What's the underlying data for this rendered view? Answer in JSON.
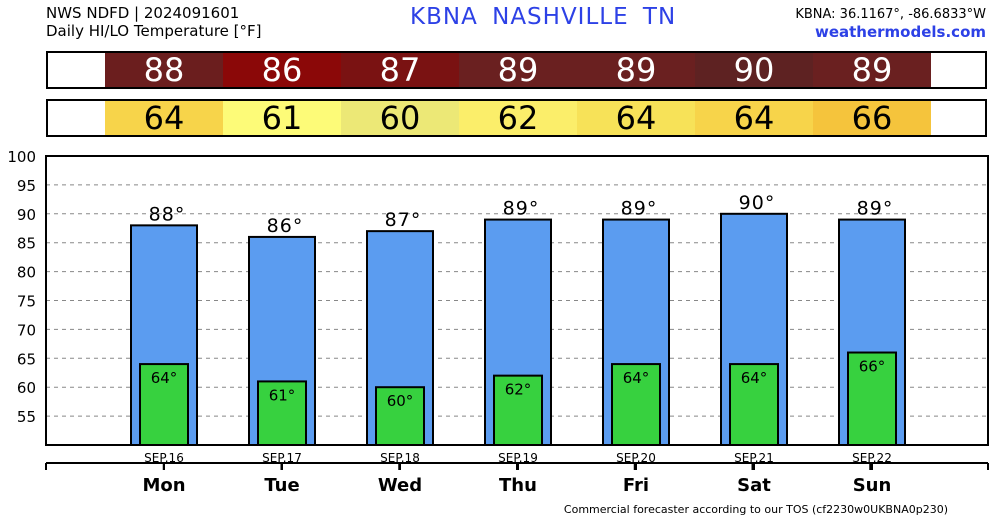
{
  "header": {
    "source_line": "NWS NDFD | 2024091601",
    "product_line": "Daily HI/LO Temperature [°F]",
    "station_line": "KBNA  NASHVILLE     TN",
    "coords": "KBNA: 36.1167°, -86.6833°W",
    "site": "weathermodels.com"
  },
  "hi_strip": [
    {
      "value": "88",
      "color": "#6b1e1e"
    },
    {
      "value": "86",
      "color": "#8b0808"
    },
    {
      "value": "87",
      "color": "#7a1212"
    },
    {
      "value": "89",
      "color": "#6a2020"
    },
    {
      "value": "89",
      "color": "#6a2020"
    },
    {
      "value": "90",
      "color": "#5e2222"
    },
    {
      "value": "89",
      "color": "#6a2020"
    }
  ],
  "lo_strip": [
    {
      "value": "64",
      "color": "#f7d44a"
    },
    {
      "value": "61",
      "color": "#fdfb78"
    },
    {
      "value": "60",
      "color": "#ece876"
    },
    {
      "value": "62",
      "color": "#fbee6a"
    },
    {
      "value": "64",
      "color": "#f7e258"
    },
    {
      "value": "64",
      "color": "#f7d44a"
    },
    {
      "value": "66",
      "color": "#f5c43c"
    }
  ],
  "chart_data": {
    "type": "bar",
    "categories": [
      "Mon",
      "Tue",
      "Wed",
      "Thu",
      "Fri",
      "Sat",
      "Sun"
    ],
    "dates": [
      "SEP.16",
      "SEP.17",
      "SEP.18",
      "SEP.19",
      "SEP.20",
      "SEP.21",
      "SEP.22"
    ],
    "series": [
      {
        "values": [
          88,
          86,
          87,
          89,
          89,
          90,
          89
        ],
        "labels": [
          "88°",
          "86°",
          "87°",
          "89°",
          "89°",
          "90°",
          "89°"
        ],
        "color": "#5b9cf0"
      },
      {
        "values": [
          64,
          61,
          60,
          62,
          64,
          64,
          66
        ],
        "labels": [
          "64°",
          "61°",
          "60°",
          "62°",
          "64°",
          "64°",
          "66°"
        ],
        "color": "#37d13f"
      }
    ],
    "ylim": [
      50,
      100
    ],
    "yticks": [
      55,
      60,
      65,
      70,
      75,
      80,
      85,
      90,
      95,
      100
    ],
    "grid": true
  },
  "footer": "Commercial forecaster according to our TOS (cf2230w0UKBNA0p230)"
}
